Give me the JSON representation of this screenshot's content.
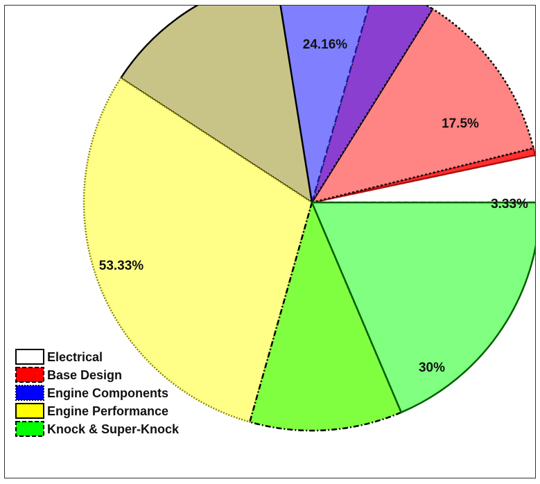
{
  "chart_data": {
    "type": "pie",
    "title": "",
    "slices": [
      {
        "label": "3.33%",
        "value": 3.33,
        "color": "#ffffff",
        "stroke": "#000000",
        "dash": "8,4"
      },
      {
        "label": "",
        "value": 0.5,
        "color": "#ff3030",
        "stroke": "#b01010",
        "dash": ""
      },
      {
        "label": "17.5%",
        "value": 12.3,
        "color": "#ff8484",
        "stroke": "#000000",
        "dash": "3,3"
      },
      {
        "label": "",
        "value": 4.4,
        "color": "#8a3fd0",
        "stroke": "#000000",
        "dash": "3,3"
      },
      {
        "label": "24.16%",
        "value": 7.0,
        "color": "#8080ff",
        "stroke": "#1a1a9c",
        "dash": "10,5"
      },
      {
        "label": "",
        "value": 13.3,
        "color": "#c8c488",
        "stroke": "#000000",
        "dash": ""
      },
      {
        "label": "53.33%",
        "value": 29.8,
        "color": "#ffff88",
        "stroke": "#8a8a00",
        "dash": "2,2"
      },
      {
        "label": "",
        "value": 10.8,
        "color": "#80ff40",
        "stroke": "#000000",
        "dash": "8,3,2,3"
      },
      {
        "label": "30%",
        "value": 18.6,
        "color": "#80ff80",
        "stroke": "#006000",
        "dash": ""
      }
    ],
    "legend": {
      "position": "bottom-left",
      "entries": [
        {
          "name": "Electrical",
          "color": "#ffffff",
          "stroke": "#000000",
          "dash": ""
        },
        {
          "name": "Base Design",
          "color": "#ff0000",
          "stroke": "#000000",
          "dash": "6,3"
        },
        {
          "name": "Engine Components",
          "color": "#0000ff",
          "stroke": "#000000",
          "dash": "2,2"
        },
        {
          "name": "Engine Performance",
          "color": "#ffff00",
          "stroke": "#000000",
          "dash": ""
        },
        {
          "name": "Knock & Super-Knock",
          "color": "#00ff00",
          "stroke": "#000000",
          "dash": "6,3"
        }
      ]
    }
  }
}
